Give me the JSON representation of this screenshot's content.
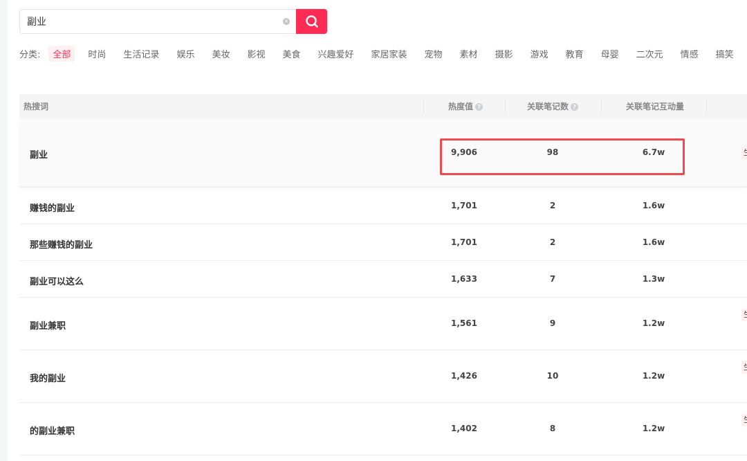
{
  "search": {
    "value": "副业",
    "placeholder": ""
  },
  "categories": {
    "label": "分类:",
    "items": [
      "全部",
      "时尚",
      "生活记录",
      "娱乐",
      "美妆",
      "影视",
      "美食",
      "兴趣爱好",
      "家居家装",
      "宠物",
      "素材",
      "摄影",
      "游戏",
      "教育",
      "母婴",
      "二次元",
      "情感",
      "搞笑"
    ],
    "active": "全部"
  },
  "table": {
    "headers": {
      "keyword": "热搜词",
      "heat": "热度值",
      "notes": "关联笔记数",
      "interaction": "关联笔记互动量"
    },
    "rows": [
      {
        "keyword": "副业",
        "heat": "9,906",
        "notes": "98",
        "interaction": "6.7w",
        "tag": "生"
      },
      {
        "keyword": "赚钱的副业",
        "heat": "1,701",
        "notes": "2",
        "interaction": "1.6w",
        "tag": ""
      },
      {
        "keyword": "那些赚钱的副业",
        "heat": "1,701",
        "notes": "2",
        "interaction": "1.6w",
        "tag": ""
      },
      {
        "keyword": "副业可以这么",
        "heat": "1,633",
        "notes": "7",
        "interaction": "1.3w",
        "tag": ""
      },
      {
        "keyword": "副业兼职",
        "heat": "1,561",
        "notes": "9",
        "interaction": "1.2w",
        "tag": "生"
      },
      {
        "keyword": "我的副业",
        "heat": "1,426",
        "notes": "10",
        "interaction": "1.2w",
        "tag": "生"
      },
      {
        "keyword": "的副业兼职",
        "heat": "1,402",
        "notes": "8",
        "interaction": "1.2w",
        "tag": "生"
      }
    ]
  },
  "colors": {
    "accent": "#fe2c55",
    "highlight": "#f04a4a"
  }
}
